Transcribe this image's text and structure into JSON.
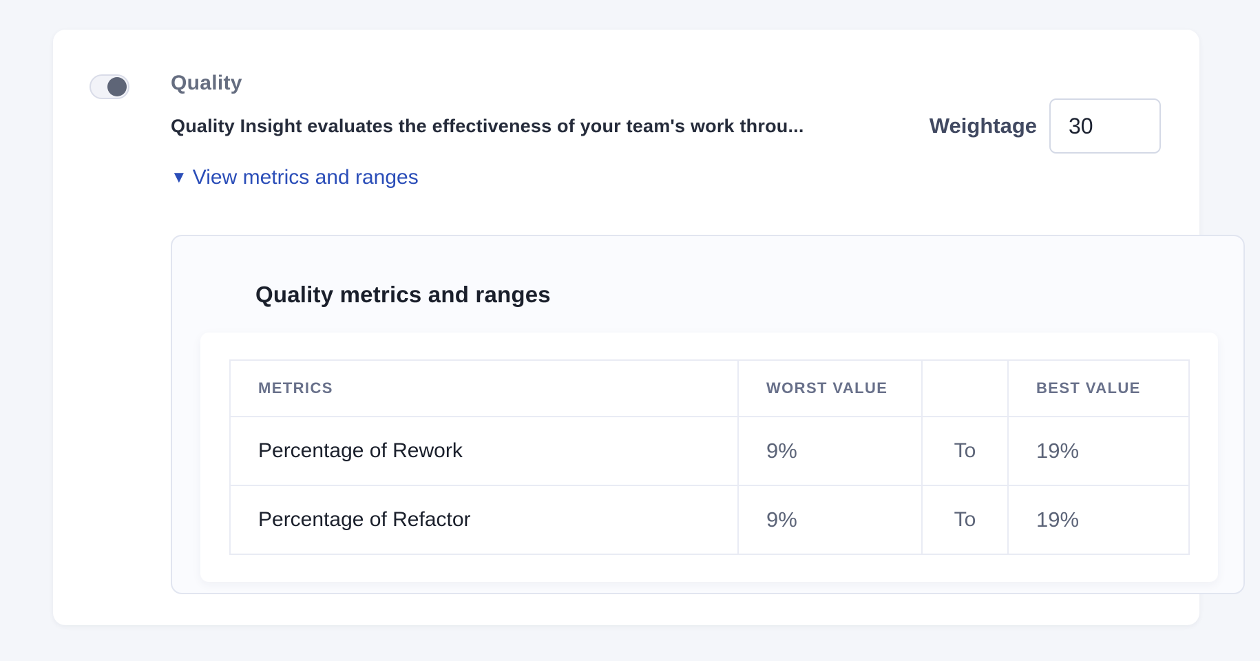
{
  "card": {
    "toggle": {
      "name": "quality-toggle",
      "state": "on"
    },
    "title": "Quality",
    "description": "Quality Insight evaluates the effectiveness of your team's work throu...",
    "weightage": {
      "label": "Weightage",
      "value": "30"
    },
    "metrics_link": {
      "icon": "triangle-down-icon",
      "icon_glyph": "▼",
      "label": "View metrics and ranges"
    }
  },
  "metrics_panel": {
    "heading": "Quality metrics and ranges",
    "table": {
      "columns": {
        "metrics": "METRICS",
        "worst": "WORST VALUE",
        "spacer": "",
        "best": "BEST VALUE"
      },
      "rows": [
        {
          "metric": "Percentage of Rework",
          "worst": "9%",
          "connector": "To",
          "best": "19%"
        },
        {
          "metric": "Percentage of Refactor",
          "worst": "9%",
          "connector": "To",
          "best": "19%"
        }
      ]
    }
  },
  "colors": {
    "link_blue": "#2a4db8",
    "toggle_knob": "#5e6577",
    "page_background": "#f4f6fa"
  }
}
